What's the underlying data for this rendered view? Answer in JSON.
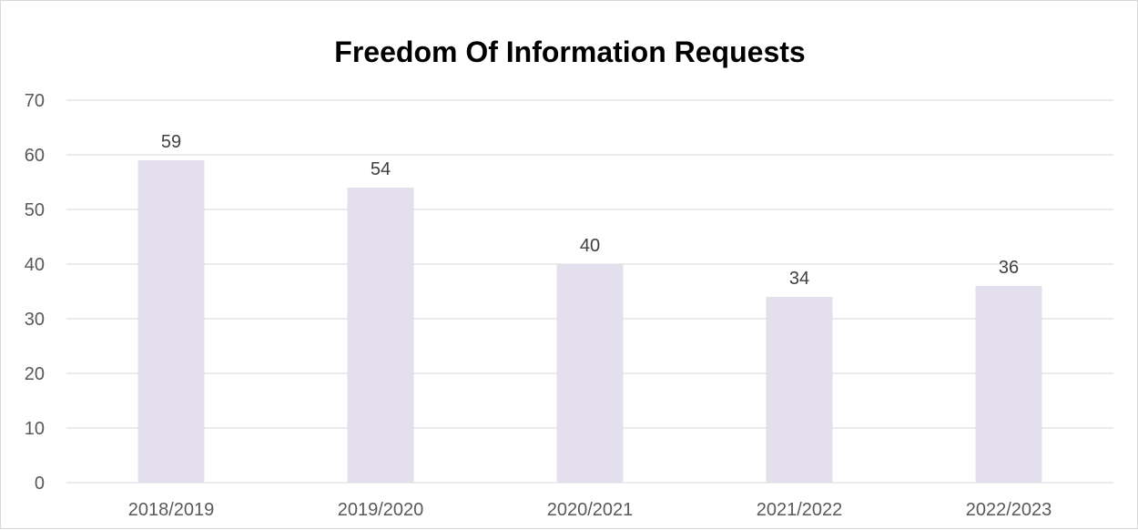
{
  "chart_data": {
    "type": "bar",
    "title": "Freedom Of Information Requests",
    "xlabel": "",
    "ylabel": "",
    "categories": [
      "2018/2019",
      "2019/2020",
      "2020/2021",
      "2021/2022",
      "2022/2023"
    ],
    "values": [
      59,
      54,
      40,
      34,
      36
    ],
    "ylim": [
      0,
      70
    ],
    "yticks": [
      0,
      10,
      20,
      30,
      40,
      50,
      60,
      70
    ],
    "grid": true,
    "legend": "none",
    "data_labels": true,
    "colors": {
      "bar": "#e4dfec",
      "grid": "#d9d9d9",
      "tick_text": "#595959",
      "label_text": "#404040"
    }
  }
}
